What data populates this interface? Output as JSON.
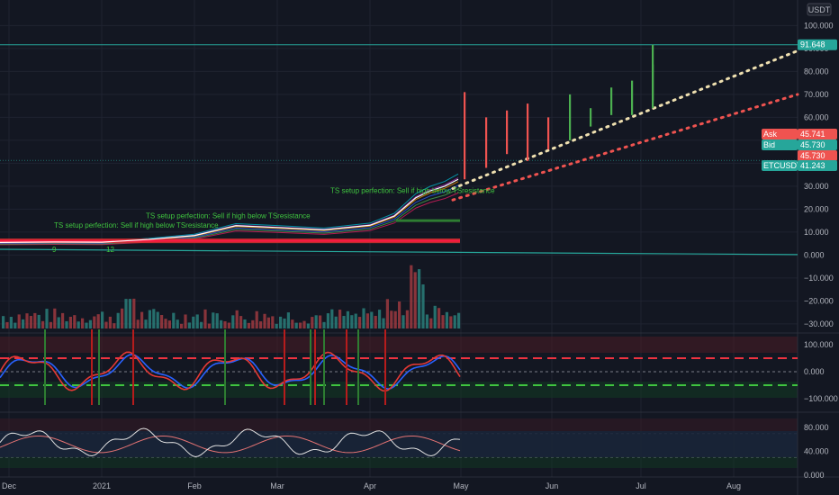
{
  "chart_data": {
    "type": "bar",
    "instrument": "ETCUSDT",
    "currency_label": "USDT",
    "x_ticks": [
      "Dec",
      "2021",
      "Feb",
      "Mar",
      "Apr",
      "May",
      "Jun",
      "Jul",
      "Aug"
    ],
    "price_ticks": [
      100.0,
      90.0,
      80.0,
      70.0,
      60.0,
      50.0,
      40.0,
      30.0,
      20.0,
      10.0,
      0.0,
      -10.0,
      -20.0,
      -30.0
    ],
    "price_tick_labels": [
      "100.000",
      "90.000",
      "80.000",
      "70.000",
      "60.000",
      "50.000",
      "40.000",
      "30.000",
      "20.000",
      "10.000",
      "0.000",
      "−10.000",
      "−20.000",
      "−30.000"
    ],
    "price_ylim": [
      -32,
      108
    ],
    "price_tags": {
      "resistance": {
        "label": "91.648",
        "value": 91.648,
        "color": "#26a69a"
      },
      "ask": {
        "label": "Ask",
        "value_text": "45.741",
        "value": 45.741,
        "color": "#ef5350"
      },
      "bid": {
        "label": "Bid",
        "value_text": "45.730",
        "value": 45.73,
        "color": "#26a69a"
      },
      "last": {
        "value_text": "45.730",
        "value": 45.73,
        "color": "#ef5350"
      },
      "symbol": {
        "label": "ETCUSDT",
        "value_text": "41.243",
        "value": 41.243,
        "color": "#26a69a"
      }
    },
    "projection_bars": [
      {
        "date": "May 1",
        "low": 33,
        "high": 71,
        "color": "red"
      },
      {
        "date": "May 8",
        "low": 38,
        "high": 60,
        "color": "red"
      },
      {
        "date": "May 15",
        "low": 44,
        "high": 63,
        "color": "red"
      },
      {
        "date": "May 22",
        "low": 41,
        "high": 66,
        "color": "red"
      },
      {
        "date": "May 29",
        "low": 46,
        "high": 60,
        "color": "red"
      },
      {
        "date": "Jun 5",
        "low": 50,
        "high": 70,
        "color": "green"
      },
      {
        "date": "Jun 12",
        "low": 56,
        "high": 64,
        "color": "green"
      },
      {
        "date": "Jun 19",
        "low": 61,
        "high": 73,
        "color": "green"
      },
      {
        "date": "Jun 26",
        "low": 61,
        "high": 76,
        "color": "green"
      },
      {
        "date": "Jul 3",
        "low": 64,
        "high": 83,
        "color": "green"
      },
      {
        "date": "Jul 10",
        "low": 67,
        "high": 91.6,
        "color": "green"
      }
    ],
    "projection_lines": [
      {
        "name": "",
        "color": "#efe0b0",
        "start": {
          "date": "Apr 28",
          "value": 29
        },
        "end": {
          "date": "Aug 28",
          "value": 89
        }
      },
      {
        "date_note": "",
        "color": "#ef5350",
        "start": {
          "date": "Apr 28",
          "value": 24
        },
        "end": {
          "date": "Aug 28",
          "value": 70
        }
      }
    ],
    "history_price": {
      "dates": [
        "Nov 28",
        "Dec 15",
        "2021",
        "Jan 15",
        "Feb",
        "Feb 15",
        "Mar",
        "Mar 15",
        "Apr",
        "Apr 8",
        "Apr 15",
        "Apr 20",
        "Apr 25",
        "Apr 30"
      ],
      "values": [
        5.5,
        5.7,
        5.6,
        6.8,
        8.5,
        12.8,
        12.0,
        11.0,
        13.0,
        17.0,
        25.0,
        28.0,
        30.0,
        33.0
      ]
    },
    "signal_labels": [
      "TS setup perfection: Sell if high below TSresistance",
      "TS setup perfection: Sell if high below TSresistance",
      "TS setup perfection: Sell if high below TSresistance"
    ],
    "misc_labels": [
      "9",
      "12"
    ],
    "volume_ylim": [
      0,
      1
    ],
    "oscillator1": {
      "ticks": [
        100.0,
        0.0,
        -100.0
      ],
      "tick_labels": [
        "100.000",
        "0.000",
        "−100.000"
      ],
      "ylim": [
        -150,
        130
      ],
      "upper_level": 50,
      "lower_level": -50
    },
    "oscillator2": {
      "ticks": [
        80.0,
        40.0,
        0.0
      ],
      "tick_labels": [
        "80.000",
        "40.000",
        "0.000"
      ],
      "ylim": [
        -3,
        100
      ],
      "upper_level": 70,
      "lower_level": 30
    }
  }
}
